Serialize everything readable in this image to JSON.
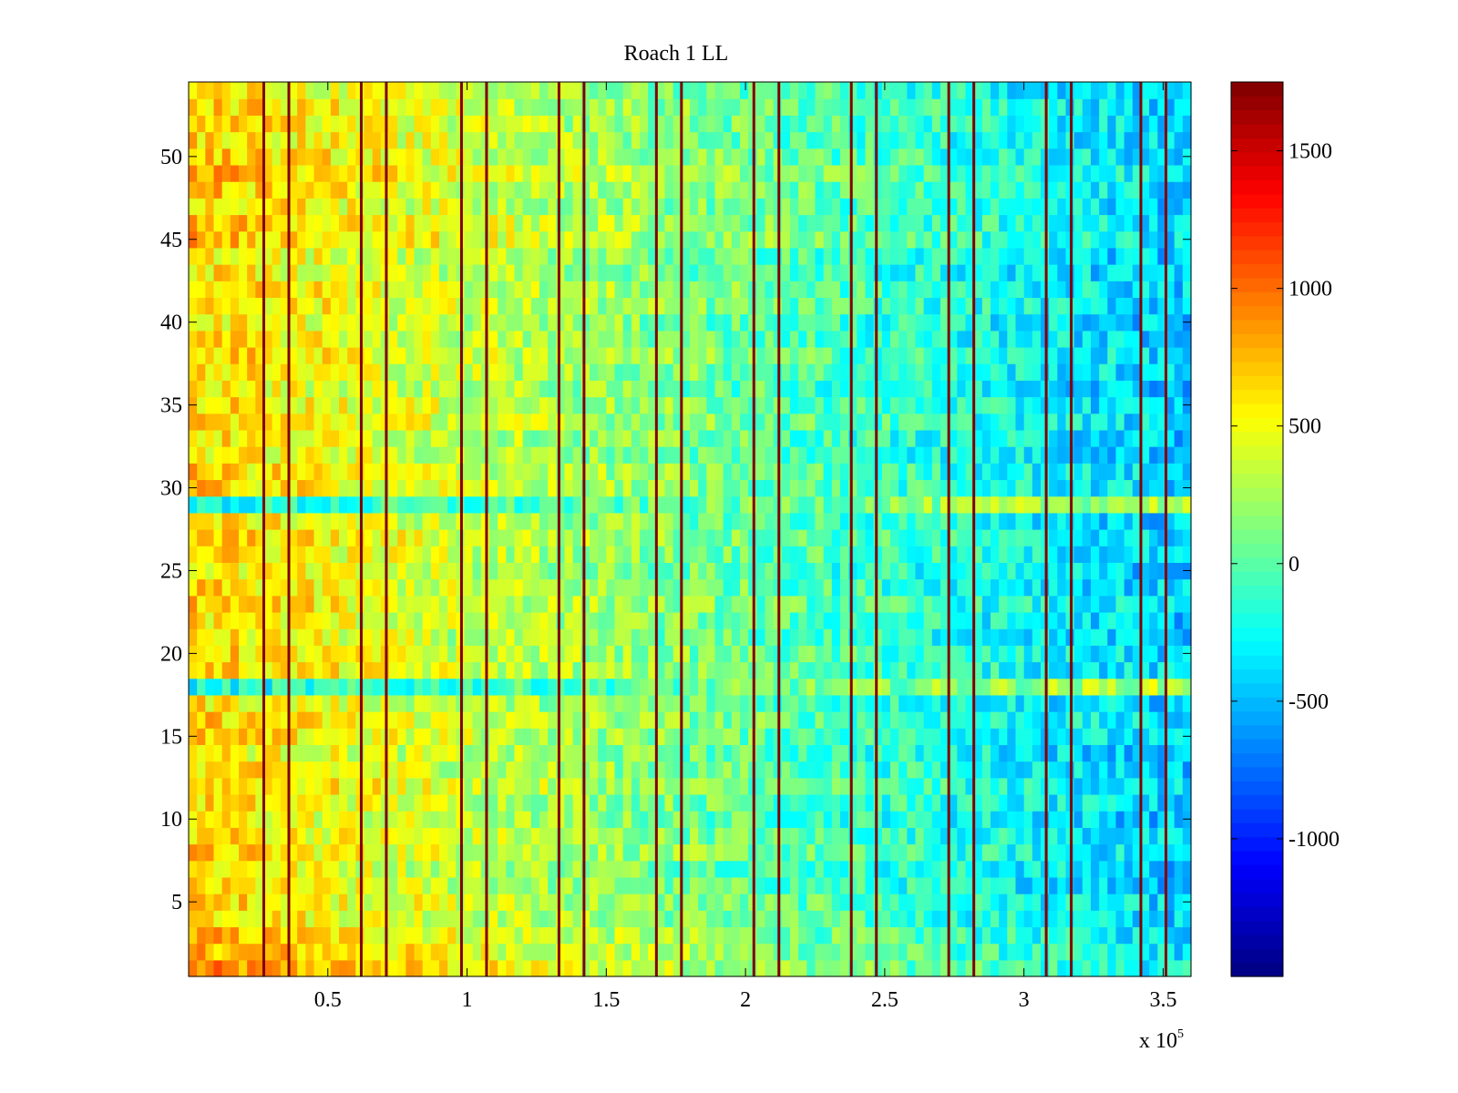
{
  "chart_data": {
    "type": "heatmap",
    "title": "Roach 1 LL",
    "xlabel": "",
    "ylabel": "",
    "x_exponent_label": "x 10",
    "x_exponent_power": "5",
    "xlim": [
      0,
      3.6
    ],
    "ylim": [
      0.5,
      54.5
    ],
    "x_ticks": [
      {
        "value": 0.5,
        "label": "0.5"
      },
      {
        "value": 1.0,
        "label": "1"
      },
      {
        "value": 1.5,
        "label": "1.5"
      },
      {
        "value": 2.0,
        "label": "2"
      },
      {
        "value": 2.5,
        "label": "2.5"
      },
      {
        "value": 3.0,
        "label": "3"
      },
      {
        "value": 3.5,
        "label": "3.5"
      }
    ],
    "y_ticks": [
      {
        "value": 5,
        "label": "5"
      },
      {
        "value": 10,
        "label": "10"
      },
      {
        "value": 15,
        "label": "15"
      },
      {
        "value": 20,
        "label": "20"
      },
      {
        "value": 25,
        "label": "25"
      },
      {
        "value": 30,
        "label": "30"
      },
      {
        "value": 35,
        "label": "35"
      },
      {
        "value": 40,
        "label": "40"
      },
      {
        "value": 45,
        "label": "45"
      },
      {
        "value": 50,
        "label": "50"
      }
    ],
    "colorbar": {
      "colormap": "jet",
      "clim": [
        -1500,
        1750
      ],
      "ticks": [
        {
          "value": -1000,
          "label": "-1000"
        },
        {
          "value": -500,
          "label": "-500"
        },
        {
          "value": 0,
          "label": "0"
        },
        {
          "value": 500,
          "label": "500"
        },
        {
          "value": 1000,
          "label": "1000"
        },
        {
          "value": 1500,
          "label": "1500"
        }
      ]
    },
    "rows": 54,
    "columns": 120,
    "trend_start_value": 650,
    "trend_end_value": -450,
    "boundary_lines_x": [
      0.27,
      0.36,
      0.62,
      0.71,
      0.98,
      1.07,
      1.33,
      1.42,
      1.68,
      1.77,
      2.03,
      2.12,
      2.38,
      2.47,
      2.73,
      2.82,
      3.08,
      3.17,
      3.42,
      3.51
    ],
    "boundary_line_value": 1750,
    "anomalous_rows": [
      {
        "row": 18,
        "start_value": -250,
        "end_value": 300
      },
      {
        "row": 29,
        "start_value": -250,
        "end_value": 300
      }
    ]
  }
}
